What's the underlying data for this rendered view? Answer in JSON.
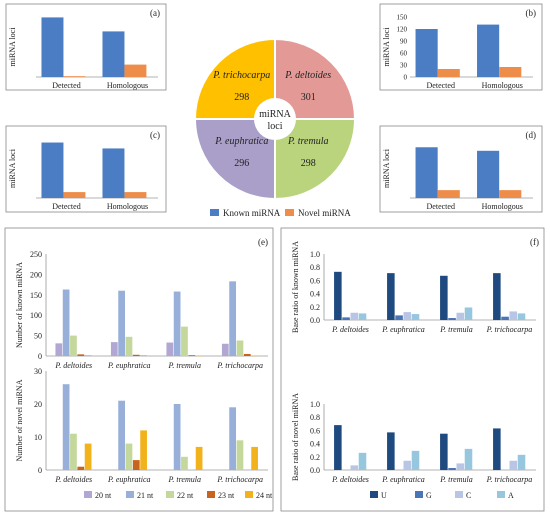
{
  "colors": {
    "known": "#4a7dc4",
    "novel": "#ee8c4a",
    "pie": [
      "#ffc000",
      "#e39a96",
      "#aa9fc8",
      "#b9d47d"
    ],
    "nt": [
      "#b2a7d3",
      "#98b0d9",
      "#c4d89c",
      "#c8641f",
      "#f2b21c"
    ],
    "base": [
      "#1f4a80",
      "#4b76b6",
      "#b8c5e4",
      "#97c7de"
    ],
    "frame": "#888888",
    "axis": "#9a9a9a"
  },
  "legend_top": {
    "known": "Known miRNA",
    "novel": "Novel miRNA"
  },
  "pie": {
    "center": [
      "miRNA",
      "loci"
    ],
    "slices": [
      {
        "name": "P. trichocarpa",
        "value": 298
      },
      {
        "name": "P. deltoides",
        "value": 301
      },
      {
        "name": "P. euphratica",
        "value": 296
      },
      {
        "name": "P. tremula",
        "value": 298
      }
    ]
  },
  "nt_legend": [
    "20 nt",
    "21 nt",
    "22 nt",
    "23 nt",
    "24 nt"
  ],
  "base_legend": [
    "U",
    "G",
    "C",
    "A"
  ],
  "chart_data": [
    {
      "id": "a",
      "type": "bar",
      "panel_label": "(a)",
      "ylabel": "miRNA loci",
      "categories": [
        "Detected",
        "Homologous"
      ],
      "ylim": [
        0,
        150
      ],
      "series": [
        {
          "name": "Known miRNA",
          "values": [
            149,
            114
          ]
        },
        {
          "name": "Novel miRNA",
          "values": [
            2,
            31
          ]
        }
      ]
    },
    {
      "id": "b",
      "type": "bar",
      "panel_label": "(b)",
      "ylabel": "miRNA loci",
      "categories": [
        "Detected",
        "Homologous"
      ],
      "ylim": [
        0,
        150
      ],
      "yticks": [
        0,
        30,
        60,
        90,
        120,
        150
      ],
      "series": [
        {
          "name": "Known miRNA",
          "values": [
            120,
            131
          ]
        },
        {
          "name": "Novel miRNA",
          "values": [
            20,
            25
          ]
        }
      ]
    },
    {
      "id": "c",
      "type": "bar",
      "panel_label": "(c)",
      "ylabel": "miRNA loci",
      "categories": [
        "Detected",
        "Homologous"
      ],
      "ylim": [
        0,
        150
      ],
      "series": [
        {
          "name": "Known miRNA",
          "values": [
            141,
            126
          ]
        },
        {
          "name": "Novel miRNA",
          "values": [
            15,
            15
          ]
        }
      ]
    },
    {
      "id": "d",
      "type": "bar",
      "panel_label": "(d)",
      "ylabel": "miRNA loci",
      "categories": [
        "Detected",
        "Homologous"
      ],
      "ylim": [
        0,
        150
      ],
      "series": [
        {
          "name": "Known miRNA",
          "values": [
            129,
            120
          ]
        },
        {
          "name": "Novel miRNA",
          "values": [
            20,
            20
          ]
        }
      ]
    },
    {
      "id": "e1",
      "type": "bar",
      "panel_label": "(e)",
      "ylabel": "Number of known miRNA",
      "categories": [
        "P. deltoides",
        "P. euphratica",
        "P. tremula",
        "P. trichocarpa"
      ],
      "ylim": [
        0,
        250
      ],
      "yticks": [
        0,
        50,
        100,
        150,
        200,
        250
      ],
      "series": [
        {
          "name": "20 nt",
          "values": [
            31,
            34,
            33,
            30
          ]
        },
        {
          "name": "21 nt",
          "values": [
            163,
            160,
            158,
            183
          ]
        },
        {
          "name": "22 nt",
          "values": [
            50,
            47,
            72,
            38
          ]
        },
        {
          "name": "23 nt",
          "values": [
            4,
            3,
            2,
            5
          ]
        },
        {
          "name": "24 nt",
          "values": [
            2,
            2,
            1,
            1
          ]
        }
      ]
    },
    {
      "id": "e2",
      "type": "bar",
      "ylabel": "Number of novel miRNA",
      "categories": [
        "P. deltoides",
        "P. euphratica",
        "P. tremula",
        "P. trichocarpa"
      ],
      "ylim": [
        0,
        30
      ],
      "yticks": [
        0,
        10,
        20,
        30
      ],
      "series": [
        {
          "name": "20 nt",
          "values": [
            0,
            0,
            0,
            0
          ]
        },
        {
          "name": "21 nt",
          "values": [
            26,
            21,
            20,
            19
          ]
        },
        {
          "name": "22 nt",
          "values": [
            11,
            8,
            4,
            9
          ]
        },
        {
          "name": "23 nt",
          "values": [
            1,
            3,
            0,
            0
          ]
        },
        {
          "name": "24 nt",
          "values": [
            8,
            12,
            7,
            7
          ]
        }
      ]
    },
    {
      "id": "f1",
      "type": "bar",
      "panel_label": "(f)",
      "ylabel": "Base ratio of known miRNA",
      "categories": [
        "P. deltoides",
        "P. euphratica",
        "P. tremula",
        "P. trichocarpa"
      ],
      "ylim": [
        0,
        1.0
      ],
      "yticks": [
        0.0,
        0.2,
        0.4,
        0.6,
        0.8,
        1.0
      ],
      "series": [
        {
          "name": "U",
          "values": [
            0.73,
            0.71,
            0.67,
            0.71
          ]
        },
        {
          "name": "G",
          "values": [
            0.04,
            0.07,
            0.03,
            0.05
          ]
        },
        {
          "name": "C",
          "values": [
            0.11,
            0.12,
            0.11,
            0.13
          ]
        },
        {
          "name": "A",
          "values": [
            0.1,
            0.09,
            0.19,
            0.1
          ]
        }
      ]
    },
    {
      "id": "f2",
      "type": "bar",
      "ylabel": "Base ratio of novel miRNA",
      "categories": [
        "P. deltoides",
        "P. euphratica",
        "P. tremula",
        "P. trichocarpa"
      ],
      "ylim": [
        0,
        1.0
      ],
      "yticks": [
        0.0,
        0.2,
        0.4,
        0.6,
        0.8,
        1.0
      ],
      "series": [
        {
          "name": "U",
          "values": [
            0.68,
            0.57,
            0.55,
            0.63
          ]
        },
        {
          "name": "G",
          "values": [
            0.0,
            0.0,
            0.03,
            0.0
          ]
        },
        {
          "name": "C",
          "values": [
            0.07,
            0.14,
            0.1,
            0.14
          ]
        },
        {
          "name": "A",
          "values": [
            0.26,
            0.29,
            0.32,
            0.23
          ]
        }
      ]
    }
  ]
}
